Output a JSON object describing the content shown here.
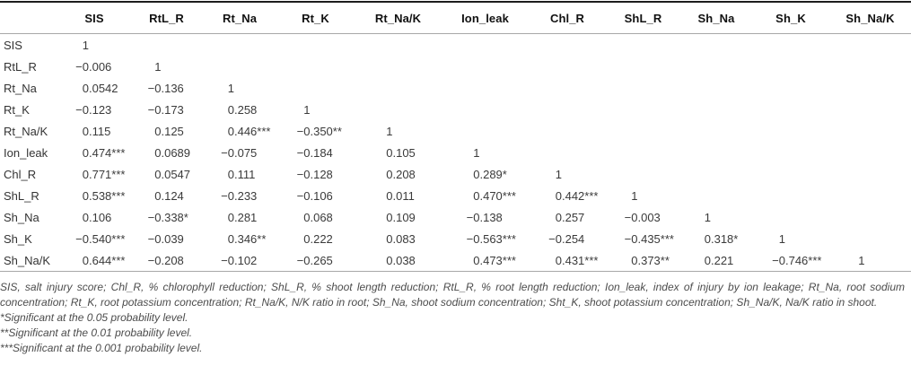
{
  "table": {
    "columns": [
      "",
      "SIS",
      "RtL_R",
      "Rt_Na",
      "Rt_K",
      "Rt_Na/K",
      "Ion_leak",
      "Chl_R",
      "ShL_R",
      "Sh_Na",
      "Sh_K",
      "Sh_Na/K"
    ],
    "rows": [
      {
        "label": "SIS",
        "values": [
          "1"
        ]
      },
      {
        "label": "RtL_R",
        "values": [
          "−0.006",
          "1"
        ]
      },
      {
        "label": "Rt_Na",
        "values": [
          "0.0542",
          "−0.136",
          "1"
        ]
      },
      {
        "label": "Rt_K",
        "values": [
          "−0.123",
          "−0.173",
          "0.258",
          "1"
        ]
      },
      {
        "label": "Rt_Na/K",
        "values": [
          "0.115",
          "0.125",
          "0.446***",
          "−0.350**",
          "1"
        ]
      },
      {
        "label": "Ion_leak",
        "values": [
          "0.474***",
          "0.0689",
          "−0.075",
          "−0.184",
          "0.105",
          "1"
        ]
      },
      {
        "label": "Chl_R",
        "values": [
          "0.771***",
          "0.0547",
          "0.111",
          "−0.128",
          "0.208",
          "0.289*",
          "1"
        ]
      },
      {
        "label": "ShL_R",
        "values": [
          "0.538***",
          "0.124",
          "−0.233",
          "−0.106",
          "0.011",
          "0.470***",
          "0.442***",
          "1"
        ]
      },
      {
        "label": "Sh_Na",
        "values": [
          "0.106",
          "−0.338*",
          "0.281",
          "0.068",
          "0.109",
          "−0.138",
          "0.257",
          "−0.003",
          "1"
        ]
      },
      {
        "label": "Sh_K",
        "values": [
          "−0.540***",
          "−0.039",
          "0.346**",
          "0.222",
          "0.083",
          "−0.563***",
          "−0.254",
          "−0.435***",
          "0.318*",
          "1"
        ]
      },
      {
        "label": "Sh_Na/K",
        "values": [
          "0.644***",
          "−0.208",
          "−0.102",
          "−0.265",
          "0.038",
          "0.473***",
          "0.431***",
          "0.373**",
          "0.221",
          "−0.746***",
          "1"
        ]
      }
    ]
  },
  "footnotes": {
    "abbreviations": "SIS, salt injury score; Chl_R, % chlorophyll reduction; ShL_R, % shoot length reduction; RtL_R, % root length reduction; Ion_leak, index of injury by ion leakage; Rt_Na, root sodium concentration; Rt_K, root potassium concentration; Rt_Na/K, N/K ratio in root; Sh_Na, shoot sodium concentration; Sht_K, shoot potassium concentration; Sh_Na/K, Na/K ratio in shoot.",
    "sig_005": "*Significant at the 0.05 probability level.",
    "sig_001": "**Significant at the 0.01 probability level.",
    "sig_0001": "***Significant at the 0.001 probability level."
  }
}
